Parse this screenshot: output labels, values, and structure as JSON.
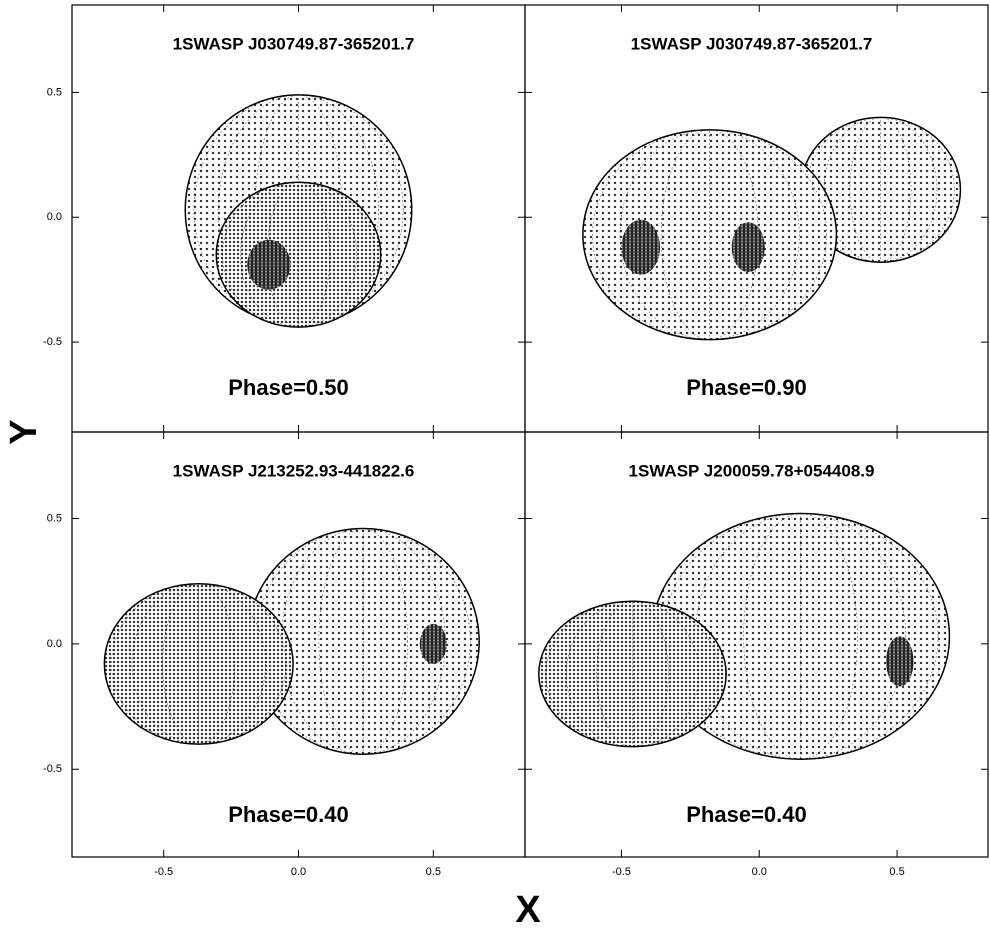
{
  "xlabel": "X",
  "ylabel": "Y",
  "chart_data": [
    {
      "type": "binary",
      "title": "1SWASP J030749.87-365201.7",
      "annotation": "Phase=0.50",
      "xlim": [
        -0.84,
        0.84
      ],
      "ylim": [
        -0.86,
        0.85
      ],
      "xticks": [
        -0.5,
        0,
        0.5
      ],
      "yticks": [
        {
          "value": -0.5,
          "label": "-0.5"
        },
        {
          "value": 0,
          "label": "0.0"
        },
        {
          "value": 0.5,
          "label": "0.5"
        }
      ],
      "stars": [
        {
          "x": 0.0,
          "y": 0.03,
          "rx": 0.42,
          "ry": 0.46
        },
        {
          "x": 0.0,
          "y": -0.15,
          "rx": 0.305,
          "ry": 0.29
        }
      ],
      "spots": [
        {
          "x": -0.11,
          "y": -0.19,
          "rx": 0.08,
          "ry": 0.1
        }
      ]
    },
    {
      "type": "binary",
      "title": "1SWASP J030749.87-365201.7",
      "annotation": "Phase=0.90",
      "xlim": [
        -0.85,
        0.83
      ],
      "ylim": [
        -0.86,
        0.85
      ],
      "xticks": [
        -0.5,
        0,
        0.5
      ],
      "yticks": [
        -0.5,
        0,
        0.5
      ],
      "stars": [
        {
          "x": 0.44,
          "y": 0.11,
          "rx": 0.29,
          "ry": 0.29
        },
        {
          "x": -0.18,
          "y": -0.07,
          "rx": 0.46,
          "ry": 0.42
        }
      ],
      "spots": [
        {
          "x": -0.43,
          "y": -0.12,
          "rx": 0.07,
          "ry": 0.11
        },
        {
          "x": -0.04,
          "y": -0.12,
          "rx": 0.06,
          "ry": 0.1
        }
      ]
    },
    {
      "type": "binary",
      "title": "1SWASP J213252.93-441822.6",
      "annotation": "Phase=0.40",
      "xlim": [
        -0.84,
        0.84
      ],
      "ylim": [
        -0.85,
        0.845
      ],
      "xticks": [
        {
          "value": -0.5,
          "label": "-0.5"
        },
        {
          "value": 0,
          "label": "0.0"
        },
        {
          "value": 0.5,
          "label": "0.5"
        }
      ],
      "yticks": [
        {
          "value": -0.5,
          "label": "-0.5"
        },
        {
          "value": 0,
          "label": "0.0"
        },
        {
          "value": 0.5,
          "label": "0.5"
        }
      ],
      "stars": [
        {
          "x": 0.24,
          "y": 0.01,
          "rx": 0.43,
          "ry": 0.45
        },
        {
          "x": -0.37,
          "y": -0.08,
          "rx": 0.35,
          "ry": 0.32
        }
      ],
      "spots": [
        {
          "x": 0.5,
          "y": 0.0,
          "rx": 0.05,
          "ry": 0.08
        }
      ]
    },
    {
      "type": "binary",
      "title": "1SWASP J200059.78+054408.9",
      "annotation": "Phase=0.40",
      "xlim": [
        -0.85,
        0.83
      ],
      "ylim": [
        -0.85,
        0.845
      ],
      "xticks": [
        {
          "value": -0.5,
          "label": "-0.5"
        },
        {
          "value": 0,
          "label": "0.0"
        },
        {
          "value": 0.5,
          "label": "0.5"
        }
      ],
      "yticks": [
        -0.5,
        0,
        0.5
      ],
      "stars": [
        {
          "x": 0.15,
          "y": 0.03,
          "rx": 0.54,
          "ry": 0.49
        },
        {
          "x": -0.46,
          "y": -0.12,
          "rx": 0.34,
          "ry": 0.29
        }
      ],
      "spots": [
        {
          "x": 0.51,
          "y": -0.07,
          "rx": 0.05,
          "ry": 0.1
        }
      ]
    }
  ]
}
